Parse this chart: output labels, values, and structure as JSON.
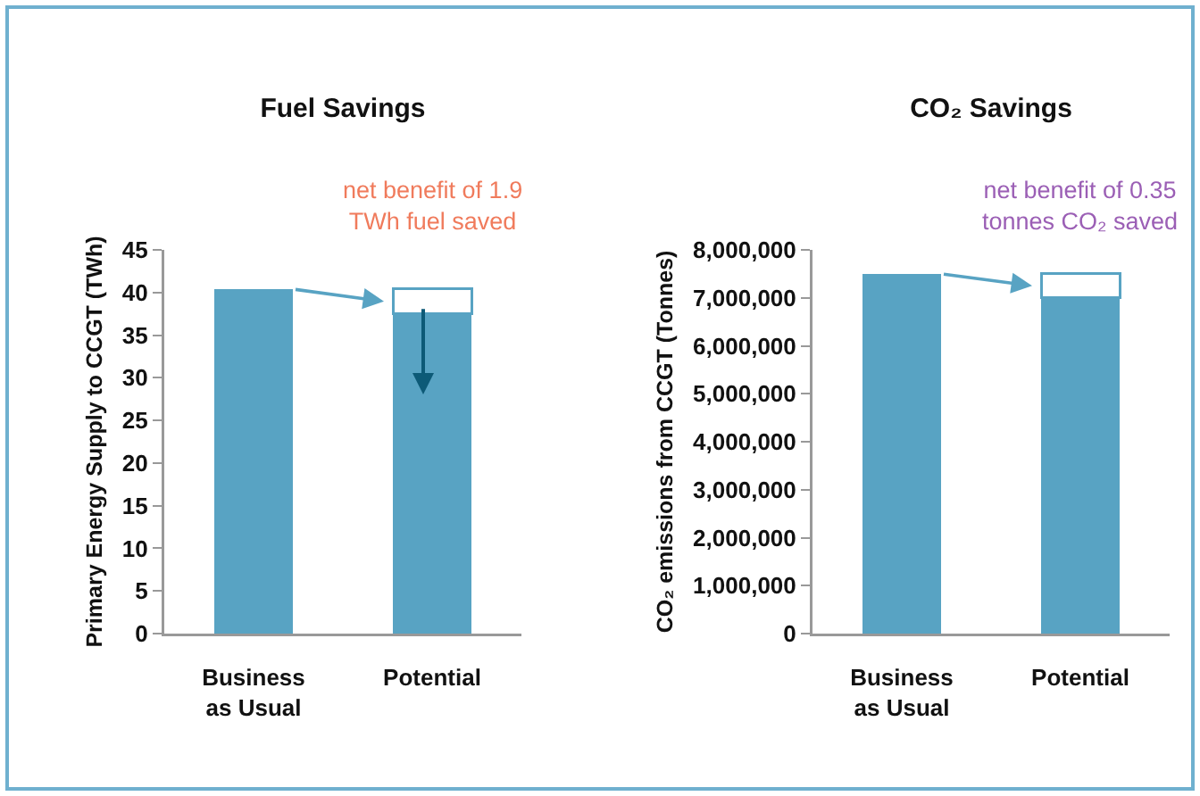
{
  "chart_data": [
    {
      "type": "bar",
      "title": "Fuel Savings",
      "ylabel": "Primary Energy Supply to CCGT (TWh)",
      "categories": [
        "Business as Usual",
        "Potential"
      ],
      "stacked": true,
      "series": [
        {
          "color": "#58a3c3",
          "values": [
            40.4,
            37.5
          ]
        },
        {
          "color": "#ffffff",
          "values": [
            null,
            2.9
          ]
        }
      ],
      "ylim": [
        0,
        45
      ],
      "yticks": [
        0,
        5,
        10,
        15,
        20,
        25,
        30,
        35,
        40,
        45
      ],
      "grid": false,
      "annotations": [
        "net benefit of 1.9\nTWh fuel saved"
      ]
    },
    {
      "type": "bar",
      "title": "CO₂ Savings",
      "ylabel": "CO₂ emissions from CCGT (Tonnes)",
      "categories": [
        "Business as Usual",
        "Potential"
      ],
      "stacked": true,
      "series": [
        {
          "color": "#58a3c3",
          "values": [
            7500000,
            7000000
          ]
        },
        {
          "color": "#ffffff",
          "values": [
            null,
            500000
          ]
        }
      ],
      "ylim": [
        0,
        8000000
      ],
      "yticks": [
        0,
        {
          "value": 1000000,
          "label": "1,000,000"
        },
        {
          "value": 2000000,
          "label": "2,000,000"
        },
        {
          "value": 3000000,
          "label": "3,000,000"
        },
        {
          "value": 4000000,
          "label": "4,000,000"
        },
        {
          "value": 5000000,
          "label": "5,000,000"
        },
        {
          "value": 6000000,
          "label": "6,000,000"
        },
        {
          "value": 7000000,
          "label": "7,000,000"
        },
        {
          "value": 8000000,
          "label": "8,000,000"
        }
      ],
      "grid": false,
      "annotations": [
        "net benefit of 0.35\ntonnes CO₂ saved"
      ]
    }
  ]
}
